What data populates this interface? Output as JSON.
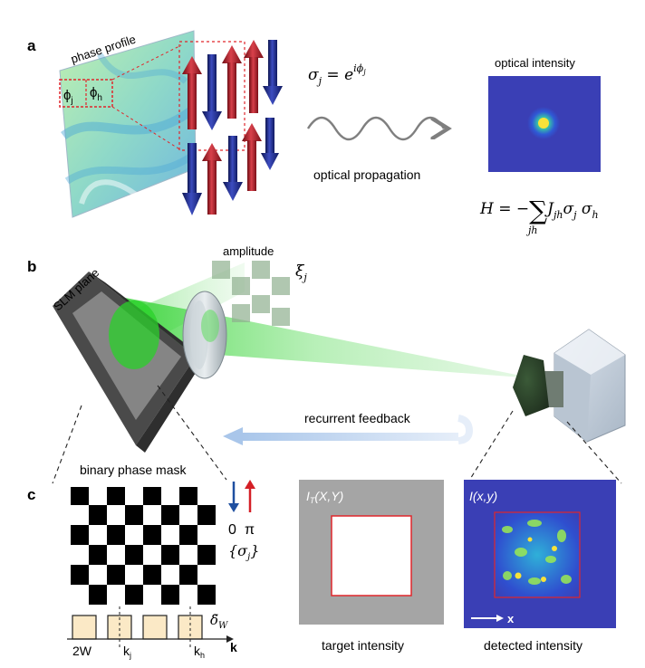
{
  "panel_a": {
    "label": "a",
    "phase_profile_label": "phase profile",
    "phi_j": "ϕ",
    "phi_j_sub": "j",
    "phi_h": "ϕ",
    "phi_h_sub": "h",
    "sigma_lhs": "σ",
    "sigma_lhs_sub": "j",
    "sigma_eq": " = e",
    "sigma_exp": "iϕ",
    "sigma_exp_sub": "j",
    "propagation_label": "optical propagation",
    "intensity_label": "optical intensity",
    "hamiltonian_lhs": "H = −",
    "hamiltonian_sum": "∑",
    "hamiltonian_sum_sub": "jh",
    "hamiltonian_J": "J",
    "hamiltonian_J_sub": "jh",
    "hamiltonian_s1": "σ",
    "hamiltonian_s1_sub": "j",
    "hamiltonian_s2": "σ",
    "hamiltonian_s2_sub": "h"
  },
  "panel_b": {
    "label": "b",
    "amplitude_label": "amplitude",
    "xi": "ξ",
    "xi_sub": "j",
    "slm_label": "SLM plane",
    "feedback_label": "recurrent feedback"
  },
  "panel_c": {
    "label": "c",
    "mask_label": "binary phase mask",
    "zero": "0",
    "pi": "π",
    "sigma_set": "{σ",
    "sigma_set_sub": "j",
    "sigma_set_close": "}",
    "delta": "δ̃",
    "delta_sub": "W",
    "width_label": "2W",
    "k_j": "k",
    "k_j_sub": "j",
    "k_h": "k",
    "k_h_sub": "h",
    "k_axis": "k",
    "target_title": "I",
    "target_title_sub": "T",
    "target_title_args": "(X,Y)",
    "target_caption": "target intensity",
    "detected_title": "I(x,y)",
    "detected_caption": "detected intensity",
    "x_axis": "x"
  },
  "colors": {
    "spin_up": "#b0202a",
    "spin_down": "#1f2c8f",
    "beam_green": "#3dd63d",
    "jet_blue": "#3a3fb5",
    "target_gray": "#a5a5a5",
    "highlight_red": "#e0262b",
    "box_fill": "#fbe9c6"
  },
  "icons": [
    "spin-up-arrow-icon",
    "spin-down-arrow-icon",
    "wave-arrow-icon",
    "lens-icon",
    "camera-icon",
    "feedback-arrow-icon"
  ]
}
